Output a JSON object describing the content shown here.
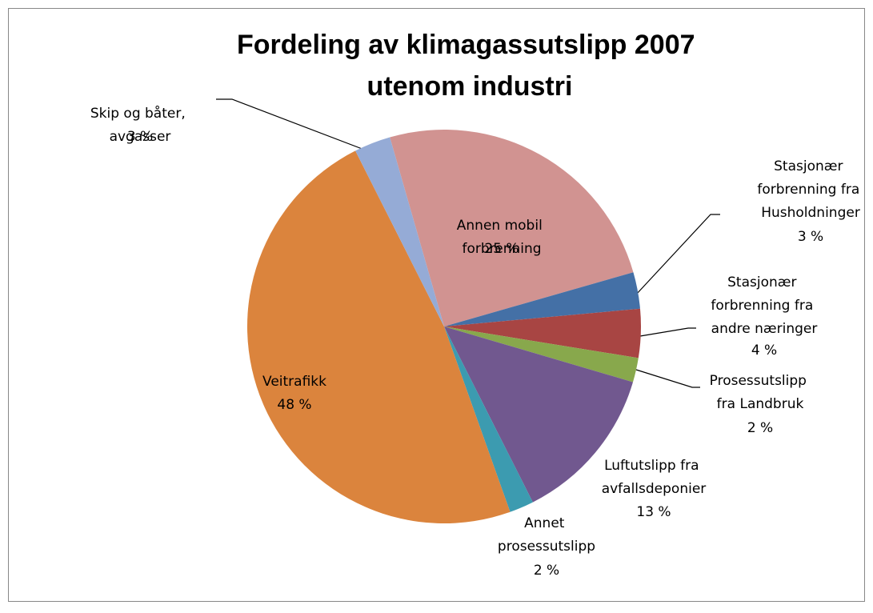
{
  "chart_data": {
    "type": "pie",
    "title": "Fordeling av klimagassutslipp 2007 utenom industri",
    "categories": [
      "Annen mobil forbrenning",
      "Stasjonær forbrenning fra Husholdninger",
      "Stasjonær forbrenning fra andre næringer",
      "Prosessutslipp fra Landbruk",
      "Luftutslipp fra avfallsdeponier",
      "Annet prosessutslipp",
      "Veitrafikk",
      "Skip og båter, avgasser"
    ],
    "values": [
      25,
      3,
      4,
      2,
      13,
      2,
      48,
      3
    ],
    "value_labels": [
      "25 %",
      "3 %",
      "4 %",
      "2 %",
      "13 %",
      "2 %",
      "48 %",
      "3 %"
    ],
    "colors": [
      "#d19391",
      "#4470a6",
      "#a84543",
      "#88a84c",
      "#71588f",
      "#3c9bb0",
      "#db843d",
      "#95abd6"
    ]
  }
}
